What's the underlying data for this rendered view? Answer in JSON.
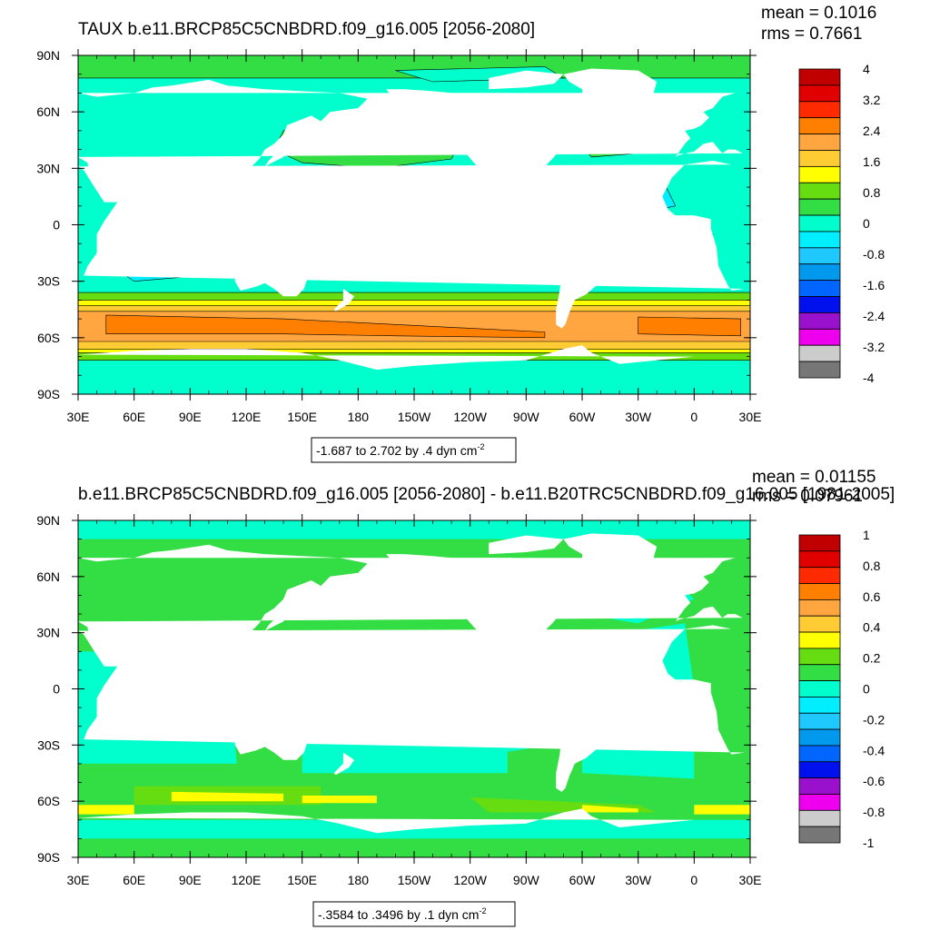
{
  "panels": [
    {
      "id": "top",
      "title": "TAUX b.e11.BRCP85C5CNBDRD.f09_g16.005 [2056-2080]",
      "mean_label": "mean = 0.1016",
      "rms_label": "rms = 0.7661",
      "range_label": "-1.687 to 2.702 by .4 dyn cm",
      "range_exponent": "-2",
      "colorbar": {
        "labels": [
          "4",
          "3.2",
          "2.4",
          "1.6",
          "0.8",
          "0",
          "-0.8",
          "-1.6",
          "-2.4",
          "-3.2",
          "-4"
        ],
        "colors": [
          "#c00000",
          "#e00000",
          "#ff2a00",
          "#ff8000",
          "#ffa640",
          "#ffcc33",
          "#ffff00",
          "#66dd11",
          "#33dd44",
          "#00ffcc",
          "#00eeff",
          "#1fc8ff",
          "#0099ee",
          "#0066ff",
          "#0011ee",
          "#9911cc",
          "#ee00ee",
          "#cccccc",
          "#777777"
        ]
      },
      "background_color": "#00ffcc"
    },
    {
      "id": "bottom",
      "title": "b.e11.BRCP85C5CNBDRD.f09_g16.005 [2056-2080] - b.e11.B20TRC5CNBDRD.f09_g16.005 [1981-2005]",
      "mean_label": "mean = 0.01155",
      "rms_label": "rms = 0.07961",
      "range_label": "-.3584 to .3496 by .1 dyn cm",
      "range_exponent": "-2",
      "colorbar": {
        "labels": [
          "1",
          "0.8",
          "0.6",
          "0.4",
          "0.2",
          "0",
          "-0.2",
          "-0.4",
          "-0.6",
          "-0.8",
          "-1"
        ],
        "colors": [
          "#c00000",
          "#e00000",
          "#ff2a00",
          "#ff8000",
          "#ffa640",
          "#ffcc33",
          "#ffff00",
          "#66dd11",
          "#33dd44",
          "#00ffcc",
          "#00eeff",
          "#1fc8ff",
          "#0099ee",
          "#0066ff",
          "#0011ee",
          "#9911cc",
          "#ee00ee",
          "#cccccc",
          "#777777"
        ]
      },
      "background_color": "#33dd44"
    }
  ],
  "axes": {
    "lat_labels": [
      "90N",
      "60N",
      "30N",
      "0",
      "30S",
      "60S",
      "90S"
    ],
    "lon_labels": [
      "30E",
      "60E",
      "90E",
      "120E",
      "150E",
      "180",
      "150W",
      "120W",
      "90W",
      "60W",
      "30W",
      "0",
      "30E"
    ]
  }
}
